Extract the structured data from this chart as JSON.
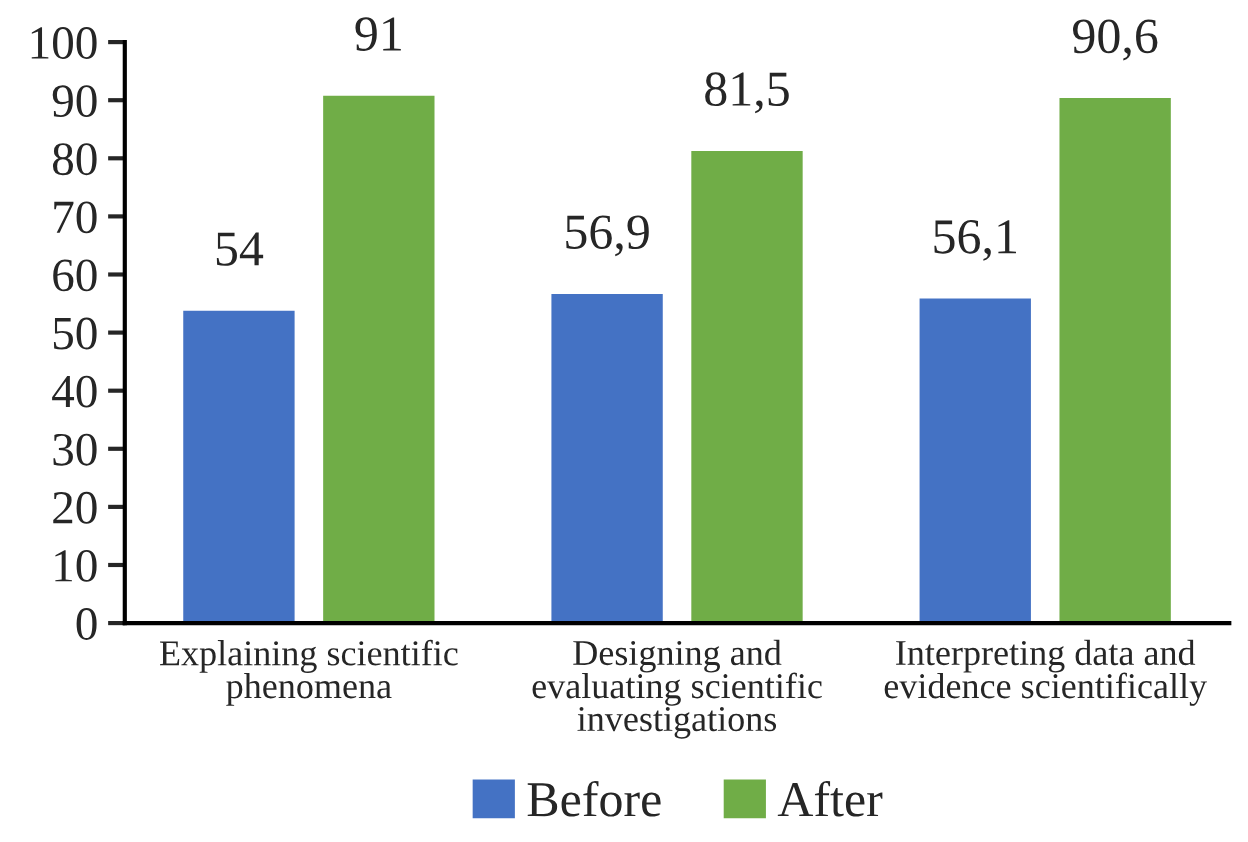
{
  "chart_data": {
    "type": "bar",
    "categories": [
      "Explaining scientific\nphenomena",
      "Designing and\nevaluating scientific\ninvestigations",
      "Interpreting data and\nevidence scientifically"
    ],
    "series": [
      {
        "name": "Before",
        "color": "#4472c4",
        "values": [
          54,
          56.9,
          56.1
        ],
        "value_labels": [
          "54",
          "56,9",
          "56,1"
        ]
      },
      {
        "name": "After",
        "color": "#70ad47",
        "values": [
          91,
          81.5,
          90.6
        ],
        "value_labels": [
          "91",
          "81,5",
          "90,6"
        ]
      }
    ],
    "ylim": [
      0,
      100
    ],
    "yticks": [
      0,
      10,
      20,
      30,
      40,
      50,
      60,
      70,
      80,
      90,
      100
    ],
    "grid": false,
    "legend": "bottom"
  }
}
